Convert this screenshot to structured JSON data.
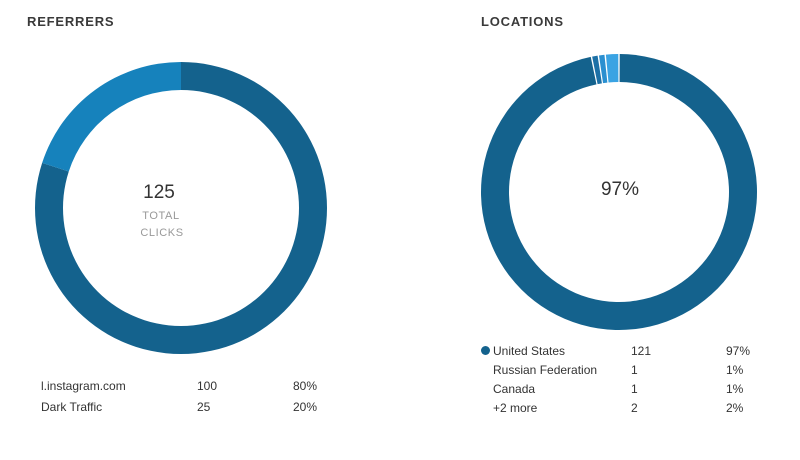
{
  "colors": {
    "dark_blue": "#14628d",
    "mid_blue": "#1682bc",
    "light_blue": "#2a8fd0",
    "lighter_blue": "#3aa3e3"
  },
  "chart_data": [
    {
      "type": "pie",
      "title": "REFERRERS",
      "center_value": "125",
      "center_label": [
        "TOTAL",
        "CLICKS"
      ],
      "slices": [
        {
          "name": "l.instagram.com",
          "value": 100,
          "percent": "80%",
          "color": "#14628d"
        },
        {
          "name": "Dark Traffic",
          "value": 25,
          "percent": "20%",
          "color": "#1682bc"
        }
      ]
    },
    {
      "type": "pie",
      "title": "LOCATIONS",
      "center_value": "97%",
      "slices": [
        {
          "name": "United States",
          "value": 121,
          "percent": "97%",
          "color": "#14628d"
        },
        {
          "name": "Russian Federation",
          "value": 1,
          "percent": "1%",
          "color": "#1c70a6"
        },
        {
          "name": "Canada",
          "value": 1,
          "percent": "1%",
          "color": "#2a8fd0"
        },
        {
          "name": "+2 more",
          "value": 2,
          "percent": "2%",
          "color": "#3aa3e3"
        }
      ]
    }
  ]
}
